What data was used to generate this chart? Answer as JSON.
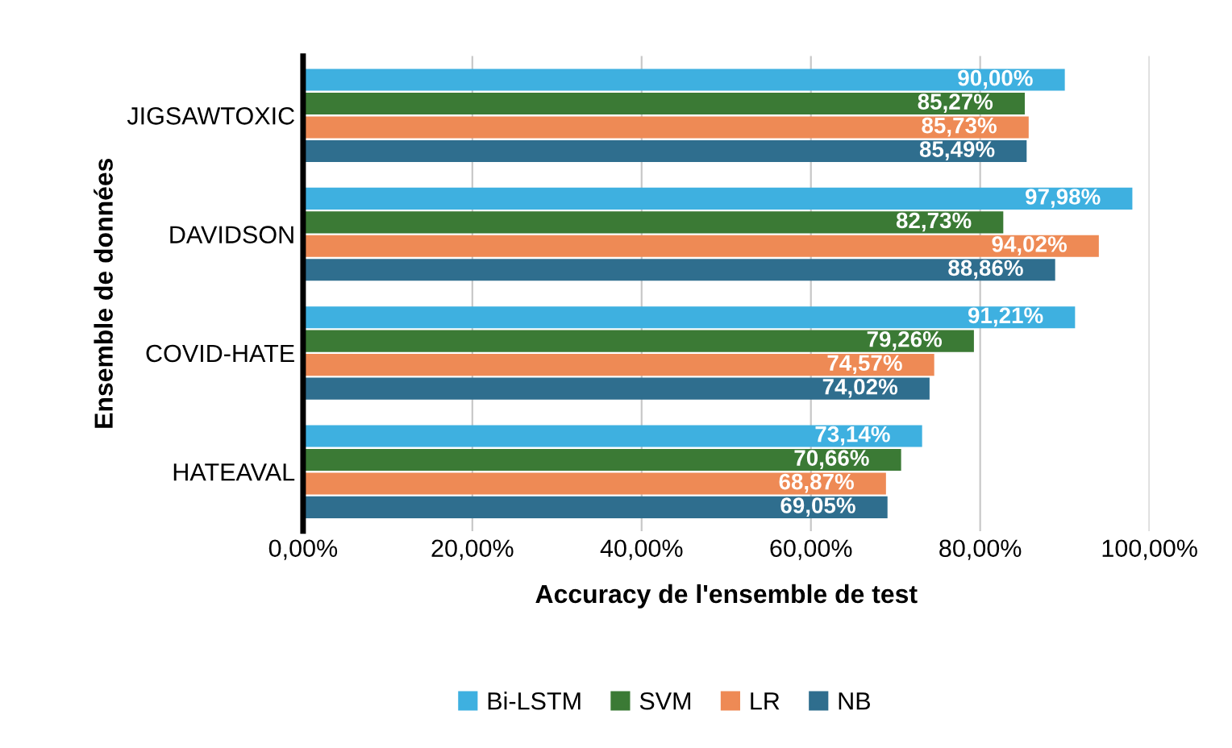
{
  "chart_data": {
    "type": "bar",
    "orientation": "horizontal",
    "xlabel": "Accuracy de l'ensemble de test",
    "ylabel": "Ensemble de données",
    "categories": [
      "JIGSAWTOXIC",
      "DAVIDSON",
      "COVID-HATE",
      "HATEAVAL"
    ],
    "series": [
      {
        "name": "Bi-LSTM",
        "color": "#3eb0e0",
        "values": [
          90.0,
          97.98,
          91.21,
          73.14
        ],
        "value_labels": [
          "90,00%",
          "97,98%",
          "91,21%",
          "73,14%"
        ]
      },
      {
        "name": "SVM",
        "color": "#3b7a35",
        "values": [
          85.27,
          82.73,
          79.26,
          70.66
        ],
        "value_labels": [
          "85,27%",
          "82,73%",
          "79,26%",
          "70,66%"
        ]
      },
      {
        "name": "LR",
        "color": "#ee8a55",
        "values": [
          85.73,
          94.02,
          74.57,
          68.87
        ],
        "value_labels": [
          "85,73%",
          "94,02%",
          "74,57%",
          "68,87%"
        ]
      },
      {
        "name": "NB",
        "color": "#2f6e8e",
        "values": [
          85.49,
          88.86,
          74.02,
          69.05
        ],
        "value_labels": [
          "85,49%",
          "88,86%",
          "74,02%",
          "69,05%"
        ]
      }
    ],
    "xlim": [
      0,
      100
    ],
    "xticks": [
      {
        "value": 0,
        "label": "0,00%"
      },
      {
        "value": 20,
        "label": "20,00%"
      },
      {
        "value": 40,
        "label": "40,00%"
      },
      {
        "value": 60,
        "label": "60,00%"
      },
      {
        "value": 80,
        "label": "80,00%"
      },
      {
        "value": 100,
        "label": "100,00%"
      }
    ],
    "grid": "x",
    "legend": "bottom"
  }
}
